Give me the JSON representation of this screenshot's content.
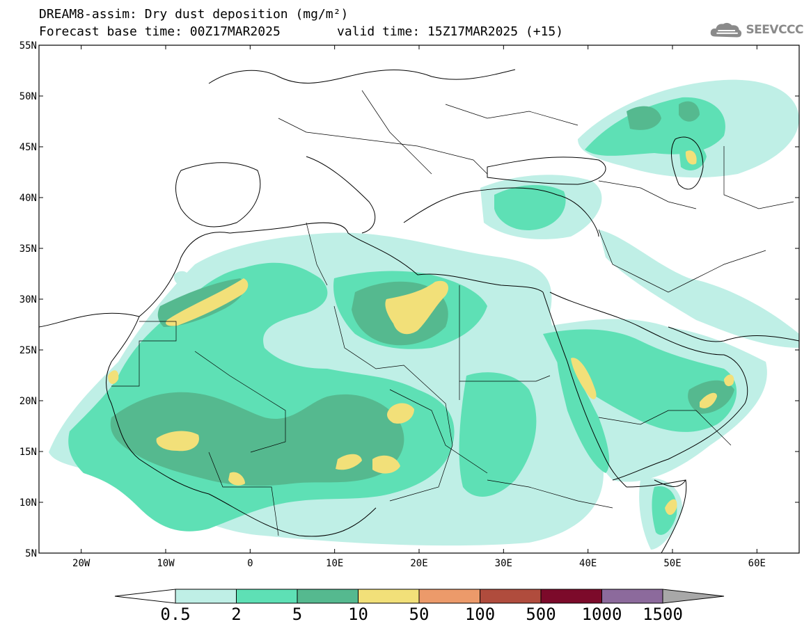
{
  "header": {
    "title": "DREAM8-assim: Dry dust deposition (mg/m²)",
    "base_time": "Forecast base time: 00Z17MAR2025",
    "valid_time": "valid time: 15Z17MAR2025 (+15)"
  },
  "logo": {
    "text": "SEEVCCC",
    "icon": "cloud-logo-icon",
    "color": "#8a8a8a"
  },
  "map": {
    "lon_range": [
      -25,
      65
    ],
    "lat_range": [
      5,
      55
    ],
    "lat_ticks": [
      "55N",
      "50N",
      "45N",
      "40N",
      "35N",
      "30N",
      "25N",
      "20N",
      "15N",
      "10N",
      "5N"
    ],
    "lon_ticks": [
      "20W",
      "10W",
      "0",
      "10E",
      "20E",
      "30E",
      "40E",
      "50E",
      "60E"
    ]
  },
  "colorbar": {
    "labels": [
      "0.5",
      "2",
      "5",
      "10",
      "50",
      "100",
      "500",
      "1000",
      "1500"
    ],
    "colors": [
      "#bfefe6",
      "#5ee0b5",
      "#55b98f",
      "#f2e079",
      "#ec9a6a",
      "#b04c3d",
      "#7c0a2a",
      "#8c6a9c",
      "#a8a8a8"
    ],
    "low_color": "#ffffff",
    "high_color": "#a8a8a8"
  }
}
